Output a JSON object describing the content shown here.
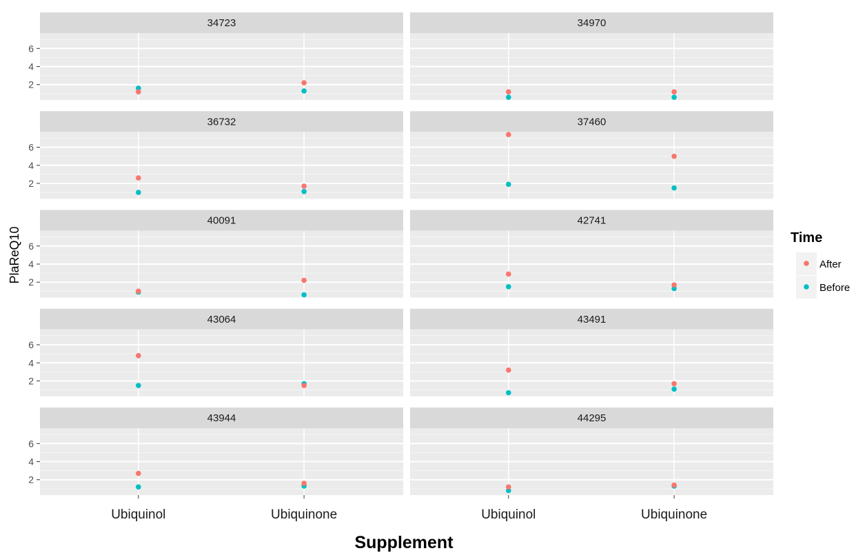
{
  "chart_data": {
    "type": "scatter",
    "facet_by": "subject",
    "facet_layout": {
      "rows": 5,
      "cols": 2
    },
    "xlabel": "Supplement",
    "ylabel": "PlaReQ10",
    "categories": [
      "Ubiquinol",
      "Ubiquinone"
    ],
    "y_ticks": [
      2,
      4,
      6
    ],
    "ylim": [
      0.3,
      7.7
    ],
    "grid": true,
    "legend": {
      "title": "Time",
      "position": "right",
      "entries": [
        {
          "label": "After",
          "color": "#F8766D"
        },
        {
          "label": "Before",
          "color": "#00BFC4"
        }
      ]
    },
    "series": [
      {
        "name": "After",
        "color": "#F8766D"
      },
      {
        "name": "Before",
        "color": "#00BFC4"
      }
    ],
    "facets": [
      {
        "label": "34723",
        "After": [
          1.2,
          2.2
        ],
        "Before": [
          1.6,
          1.3
        ]
      },
      {
        "label": "34970",
        "After": [
          1.2,
          1.2
        ],
        "Before": [
          0.6,
          0.6
        ]
      },
      {
        "label": "36732",
        "After": [
          2.6,
          1.7
        ],
        "Before": [
          1.0,
          1.1
        ]
      },
      {
        "label": "37460",
        "After": [
          7.4,
          5.0
        ],
        "Before": [
          1.9,
          1.5
        ]
      },
      {
        "label": "40091",
        "After": [
          1.0,
          2.2
        ],
        "Before": [
          0.9,
          0.6
        ]
      },
      {
        "label": "42741",
        "After": [
          2.9,
          1.7
        ],
        "Before": [
          1.5,
          1.3
        ]
      },
      {
        "label": "43064",
        "After": [
          4.8,
          1.5
        ],
        "Before": [
          1.5,
          1.7
        ]
      },
      {
        "label": "43491",
        "After": [
          3.2,
          1.7
        ],
        "Before": [
          0.7,
          1.1
        ]
      },
      {
        "label": "43944",
        "After": [
          2.7,
          1.6
        ],
        "Before": [
          1.2,
          1.3
        ]
      },
      {
        "label": "44295",
        "After": [
          1.2,
          1.4
        ],
        "Before": [
          0.8,
          1.3
        ]
      }
    ]
  }
}
